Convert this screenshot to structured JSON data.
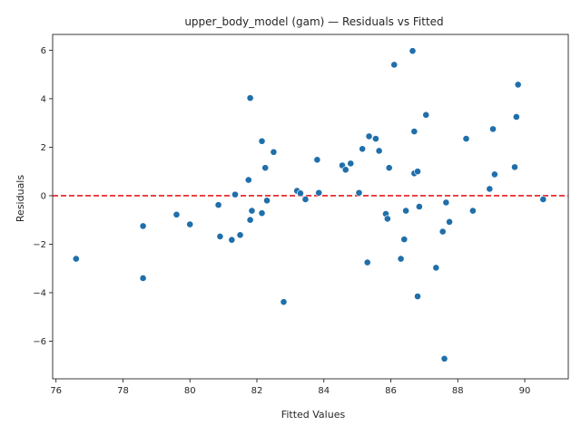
{
  "chart_data": {
    "type": "scatter",
    "title": "upper_body_model (gam) — Residuals vs Fitted",
    "xlabel": "Fitted Values",
    "ylabel": "Residuals",
    "xlim": [
      75.9,
      91.3
    ],
    "ylim": [
      -7.55,
      6.65
    ],
    "xticks": [
      76,
      78,
      80,
      82,
      84,
      86,
      88,
      90
    ],
    "yticks": [
      -6,
      -4,
      -2,
      0,
      2,
      4,
      6
    ],
    "grid": false,
    "reference_line": {
      "y": 0,
      "style": "dashed",
      "color": "#e8191b"
    },
    "marker_color": "#1f6fab",
    "points": [
      {
        "x": 76.6,
        "y": -2.6
      },
      {
        "x": 78.6,
        "y": -1.25
      },
      {
        "x": 78.6,
        "y": -3.4
      },
      {
        "x": 79.6,
        "y": -0.78
      },
      {
        "x": 80.0,
        "y": -1.18
      },
      {
        "x": 80.85,
        "y": -0.38
      },
      {
        "x": 80.9,
        "y": -1.68
      },
      {
        "x": 81.25,
        "y": -1.82
      },
      {
        "x": 81.35,
        "y": 0.05
      },
      {
        "x": 81.5,
        "y": -1.62
      },
      {
        "x": 81.75,
        "y": 0.65
      },
      {
        "x": 81.8,
        "y": 4.03
      },
      {
        "x": 81.8,
        "y": -1.0
      },
      {
        "x": 81.85,
        "y": -0.62
      },
      {
        "x": 82.15,
        "y": -0.72
      },
      {
        "x": 82.15,
        "y": 2.25
      },
      {
        "x": 82.25,
        "y": 1.15
      },
      {
        "x": 82.3,
        "y": -0.2
      },
      {
        "x": 82.5,
        "y": 1.8
      },
      {
        "x": 82.8,
        "y": -4.38
      },
      {
        "x": 83.2,
        "y": 0.2
      },
      {
        "x": 83.3,
        "y": 0.1
      },
      {
        "x": 83.45,
        "y": -0.15
      },
      {
        "x": 83.8,
        "y": 1.48
      },
      {
        "x": 83.85,
        "y": 0.12
      },
      {
        "x": 84.55,
        "y": 1.25
      },
      {
        "x": 84.65,
        "y": 1.07
      },
      {
        "x": 84.8,
        "y": 1.33
      },
      {
        "x": 85.05,
        "y": 0.12
      },
      {
        "x": 85.15,
        "y": 1.93
      },
      {
        "x": 85.3,
        "y": -2.75
      },
      {
        "x": 85.35,
        "y": 2.45
      },
      {
        "x": 85.55,
        "y": 2.35
      },
      {
        "x": 85.65,
        "y": 1.85
      },
      {
        "x": 85.85,
        "y": -0.75
      },
      {
        "x": 85.9,
        "y": -0.95
      },
      {
        "x": 85.95,
        "y": 1.15
      },
      {
        "x": 86.1,
        "y": 5.4
      },
      {
        "x": 86.3,
        "y": -2.6
      },
      {
        "x": 86.4,
        "y": -1.8
      },
      {
        "x": 86.45,
        "y": -0.62
      },
      {
        "x": 86.65,
        "y": 5.97
      },
      {
        "x": 86.7,
        "y": 2.65
      },
      {
        "x": 86.7,
        "y": 0.92
      },
      {
        "x": 86.8,
        "y": 1.0
      },
      {
        "x": 86.8,
        "y": -4.15
      },
      {
        "x": 86.85,
        "y": -0.45
      },
      {
        "x": 87.05,
        "y": 3.33
      },
      {
        "x": 87.35,
        "y": -2.97
      },
      {
        "x": 87.55,
        "y": -1.48
      },
      {
        "x": 87.6,
        "y": -6.72
      },
      {
        "x": 87.65,
        "y": -0.28
      },
      {
        "x": 87.75,
        "y": -1.08
      },
      {
        "x": 88.25,
        "y": 2.35
      },
      {
        "x": 88.45,
        "y": -0.62
      },
      {
        "x": 88.95,
        "y": 0.28
      },
      {
        "x": 89.05,
        "y": 2.75
      },
      {
        "x": 89.1,
        "y": 0.88
      },
      {
        "x": 89.7,
        "y": 1.18
      },
      {
        "x": 89.75,
        "y": 3.25
      },
      {
        "x": 89.8,
        "y": 4.58
      },
      {
        "x": 90.55,
        "y": -0.15
      }
    ]
  }
}
